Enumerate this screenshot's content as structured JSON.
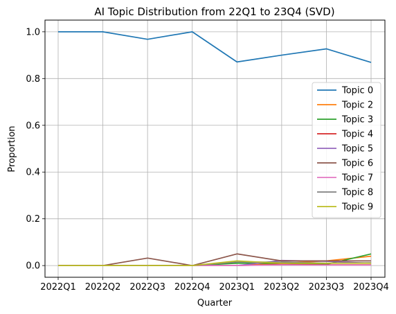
{
  "chart_data": {
    "type": "line",
    "title": "AI Topic Distribution from 22Q1 to 23Q4 (SVD)",
    "xlabel": "Quarter",
    "ylabel": "Proportion",
    "categories": [
      "2022Q1",
      "2022Q2",
      "2022Q3",
      "2022Q4",
      "2023Q1",
      "2023Q2",
      "2023Q3",
      "2023Q4"
    ],
    "ylim": [
      -0.05,
      1.05
    ],
    "yticks": [
      0.0,
      0.2,
      0.4,
      0.6,
      0.8,
      1.0
    ],
    "ytick_labels": [
      "0.0",
      "0.2",
      "0.4",
      "0.6",
      "0.8",
      "1.0"
    ],
    "grid": true,
    "legend_position": "center-right",
    "series": [
      {
        "name": "Topic 0",
        "color": "#1f77b4",
        "values": [
          1.0,
          1.0,
          0.968,
          1.0,
          0.871,
          0.9,
          0.927,
          0.869
        ]
      },
      {
        "name": "Topic 2",
        "color": "#ff7f0e",
        "values": [
          0.0,
          0.0,
          0.0,
          0.0,
          0.0,
          0.01,
          0.02,
          0.04
        ]
      },
      {
        "name": "Topic 3",
        "color": "#2ca02c",
        "values": [
          0.0,
          0.0,
          0.0,
          0.0,
          0.01,
          0.01,
          0.005,
          0.05
        ]
      },
      {
        "name": "Topic 4",
        "color": "#d62728",
        "values": [
          0.0,
          0.0,
          0.0,
          0.0,
          0.0,
          0.005,
          0.003,
          0.003
        ]
      },
      {
        "name": "Topic 5",
        "color": "#9467bd",
        "values": [
          0.0,
          0.0,
          0.0,
          0.0,
          0.0,
          0.022,
          0.018,
          0.01
        ]
      },
      {
        "name": "Topic 6",
        "color": "#8c564b",
        "values": [
          0.0,
          0.0,
          0.032,
          0.0,
          0.05,
          0.02,
          0.02,
          0.02
        ]
      },
      {
        "name": "Topic 7",
        "color": "#e377c2",
        "values": [
          0.0,
          0.0,
          0.0,
          0.0,
          0.0,
          0.003,
          0.002,
          0.002
        ]
      },
      {
        "name": "Topic 8",
        "color": "#7f7f7f",
        "values": [
          0.0,
          0.0,
          0.0,
          0.0,
          0.015,
          0.015,
          0.01,
          0.012
        ]
      },
      {
        "name": "Topic 9",
        "color": "#bcbd22",
        "values": [
          0.0,
          0.0,
          0.0,
          0.0,
          0.02,
          0.01,
          0.01,
          0.01
        ]
      }
    ]
  }
}
